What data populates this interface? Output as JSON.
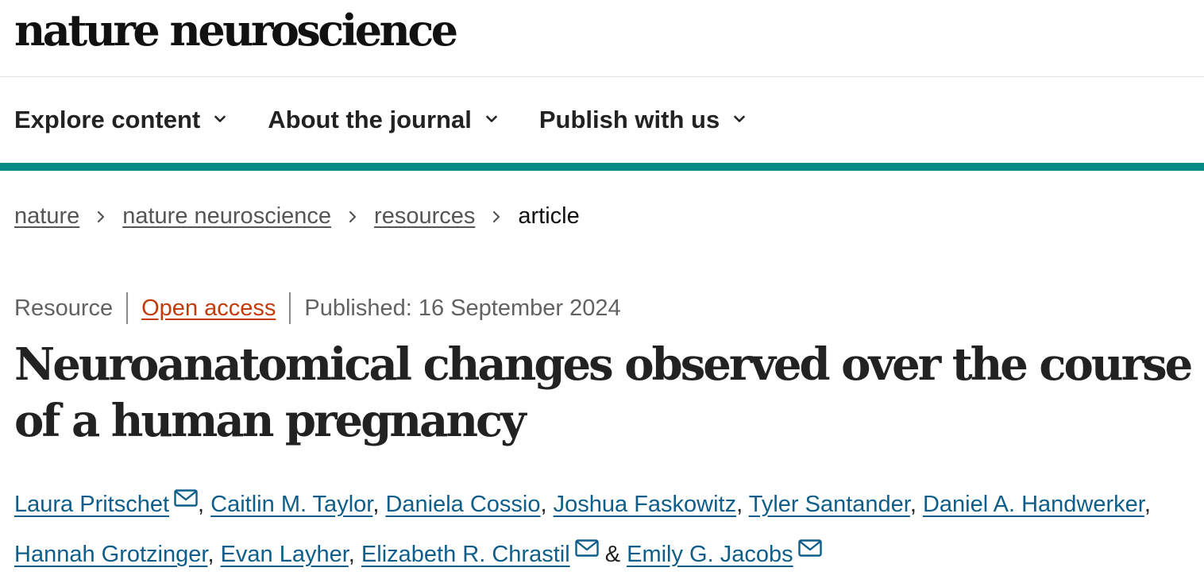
{
  "header": {
    "logo_text": "nature neuroscience"
  },
  "nav": {
    "items": [
      {
        "label": "Explore content",
        "icon": "chevron-down-icon"
      },
      {
        "label": "About the journal",
        "icon": "chevron-down-icon"
      },
      {
        "label": "Publish with us",
        "icon": "chevron-down-icon"
      }
    ],
    "accent_color": "#008b84"
  },
  "breadcrumb": {
    "items": [
      {
        "label": "nature"
      },
      {
        "label": "nature neuroscience"
      },
      {
        "label": "resources"
      },
      {
        "label": "article"
      }
    ],
    "separator_icon": "chevron-right-icon"
  },
  "article": {
    "type": "Resource",
    "access": "Open access",
    "access_color": "#c23b0b",
    "published": "Published: 16 September 2024",
    "title": "Neuroanatomical changes observed over the course of a human pregnancy",
    "authors": [
      {
        "name": "Laura Pritschet",
        "mail_icon": true
      },
      {
        "name": "Caitlin M. Taylor",
        "mail_icon": false
      },
      {
        "name": "Daniela Cossio",
        "mail_icon": false
      },
      {
        "name": "Joshua Faskowitz",
        "mail_icon": false
      },
      {
        "name": "Tyler Santander",
        "mail_icon": false
      },
      {
        "name": "Daniel A. Handwerker",
        "mail_icon": false
      },
      {
        "name": "Hannah Grotzinger",
        "mail_icon": false
      },
      {
        "name": "Evan Layher",
        "mail_icon": false
      },
      {
        "name": "Elizabeth R. Chrastil",
        "mail_icon": true
      },
      {
        "name": "Emily G. Jacobs",
        "mail_icon": true
      }
    ],
    "author_separator": ", ",
    "last_separator": " & ",
    "author_link_color": "#0f5e8a"
  }
}
